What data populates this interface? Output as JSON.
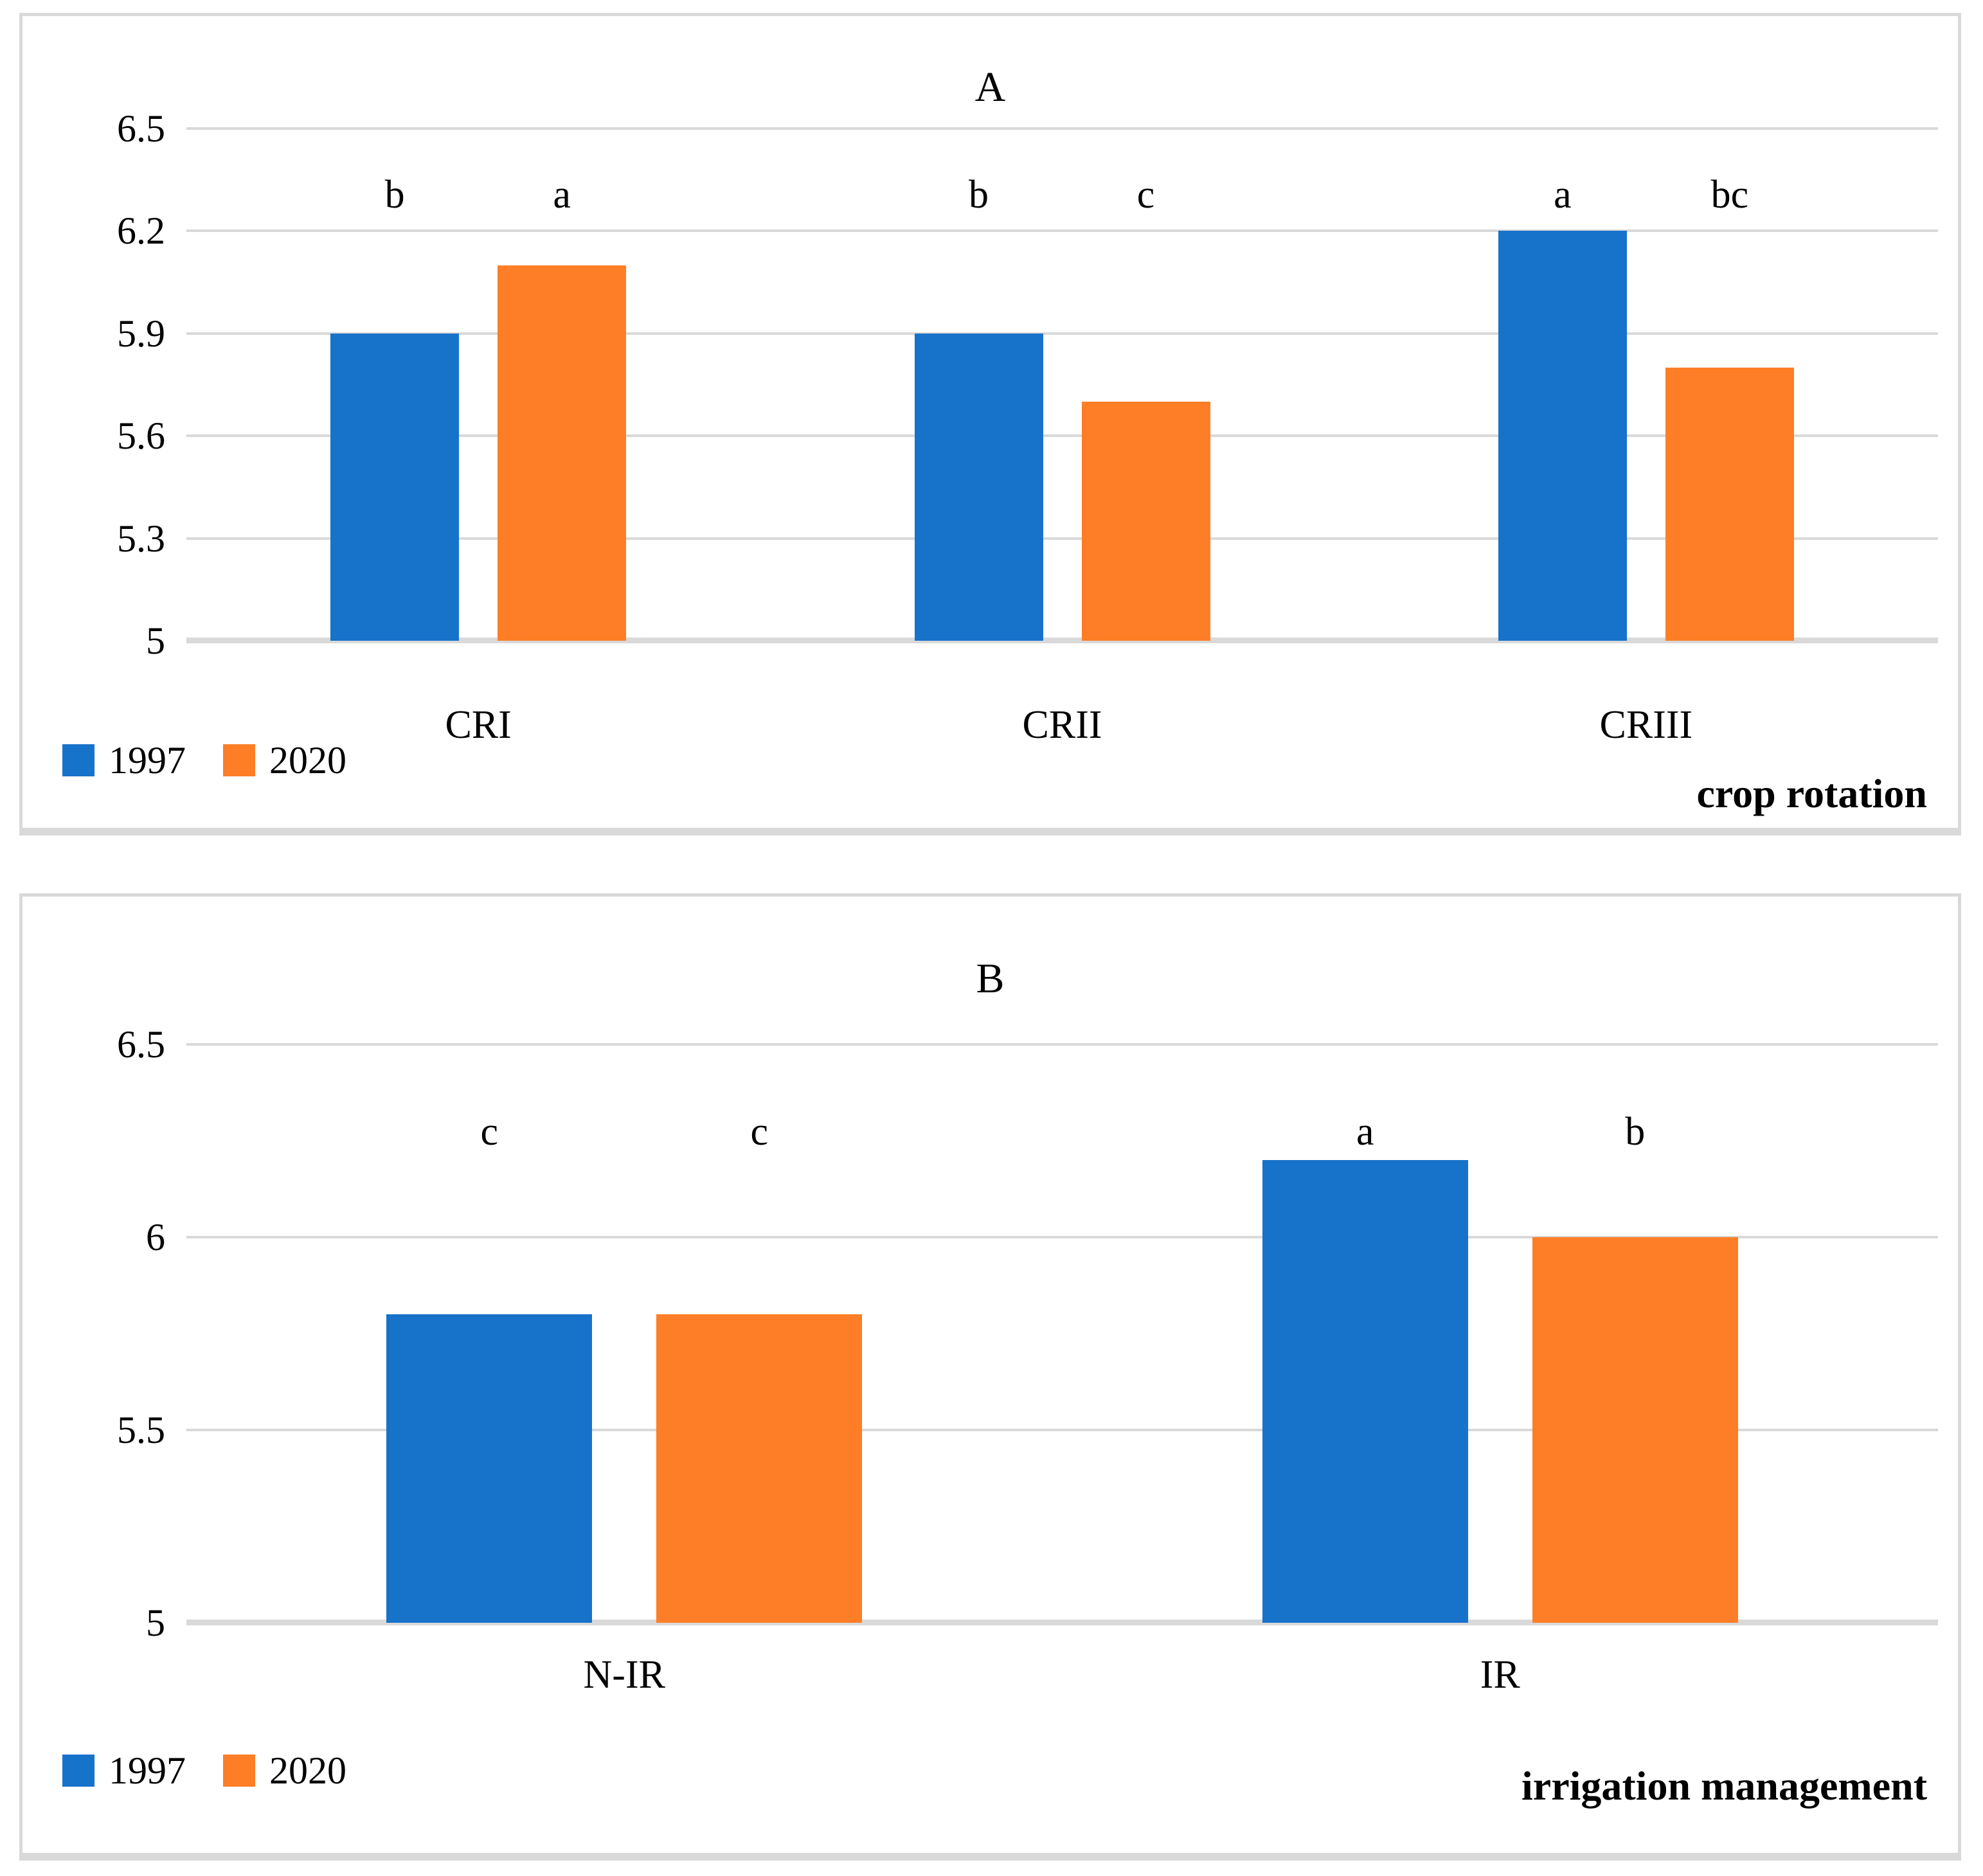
{
  "colors": {
    "series_1997": "#1772C9",
    "series_2020": "#FD7E26",
    "gridline": "#D9D9D9",
    "axis_line": "#D9D9D9",
    "panel_border": "#D9D9D9",
    "text": "#000000",
    "background": "#FFFFFF"
  },
  "chart_data": [
    {
      "type": "bar",
      "title": "A",
      "categories": [
        "CRI",
        "CRII",
        "CRIII"
      ],
      "series": [
        {
          "name": "1997",
          "color": "#1772C9",
          "values": [
            5.9,
            5.9,
            6.2
          ],
          "letters": [
            "b",
            "b",
            "a"
          ]
        },
        {
          "name": "2020",
          "color": "#FD7E26",
          "values": [
            6.1,
            5.7,
            5.8
          ],
          "letters": [
            "a",
            "c",
            "bc"
          ]
        }
      ],
      "ylim": [
        5,
        6.5
      ],
      "yticks": [
        5,
        5.3,
        5.6,
        5.9,
        6.2,
        6.5
      ],
      "ytick_labels": [
        "5",
        "5.3",
        "5.6",
        "5.9",
        "6.2",
        "6.5"
      ],
      "xlabel": "crop rotation",
      "legend": [
        "1997",
        "2020"
      ],
      "grid": true,
      "legend_position": "bottom-left"
    },
    {
      "type": "bar",
      "title": "B",
      "categories": [
        "N-IR",
        "IR"
      ],
      "series": [
        {
          "name": "1997",
          "color": "#1772C9",
          "values": [
            5.8,
            6.2
          ],
          "letters": [
            "c",
            "a"
          ]
        },
        {
          "name": "2020",
          "color": "#FD7E26",
          "values": [
            5.8,
            6.0
          ],
          "letters": [
            "c",
            "b"
          ]
        }
      ],
      "ylim": [
        5,
        6.5
      ],
      "yticks": [
        5,
        5.5,
        6,
        6.5
      ],
      "ytick_labels": [
        "5",
        "5.5",
        "6",
        "6.5"
      ],
      "xlabel": "irrigation management",
      "legend": [
        "1997",
        "2020"
      ],
      "grid": true,
      "legend_position": "bottom-left"
    }
  ]
}
